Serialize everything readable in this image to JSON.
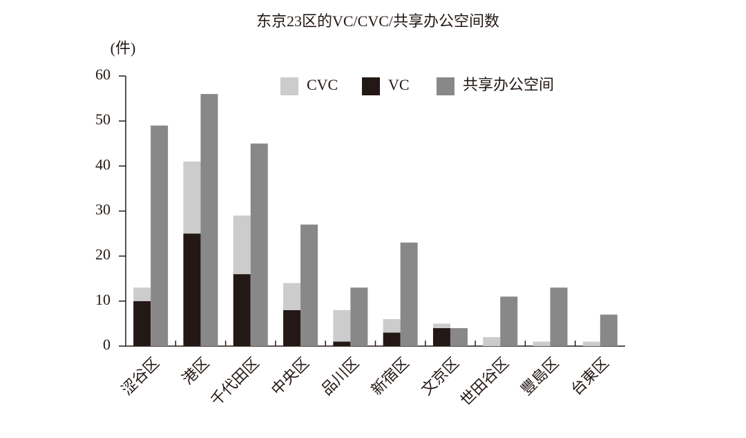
{
  "chart_data": {
    "type": "bar",
    "title": "东京23区的VC/CVC/共享办公空间数",
    "y_label": "(件)",
    "categories": [
      "涩谷区",
      "港区",
      "千代田区",
      "中央区",
      "品川区",
      "新宿区",
      "文京区",
      "世田谷区",
      "豐島区",
      "台東区"
    ],
    "series": [
      {
        "name": "CVC",
        "color": "#cccccc",
        "values": [
          3,
          16,
          13,
          6,
          7,
          3,
          1,
          2,
          1,
          1
        ]
      },
      {
        "name": "VC",
        "color": "#231815",
        "values": [
          10,
          25,
          16,
          8,
          1,
          3,
          4,
          0,
          0,
          0
        ]
      },
      {
        "name": "共享办公空间",
        "color": "#888888",
        "values": [
          49,
          56,
          45,
          27,
          13,
          23,
          4,
          11,
          13,
          7
        ]
      }
    ],
    "ylim": [
      0,
      60
    ],
    "yticks": [
      0,
      10,
      20,
      30,
      40,
      50,
      60
    ],
    "grid": false
  }
}
